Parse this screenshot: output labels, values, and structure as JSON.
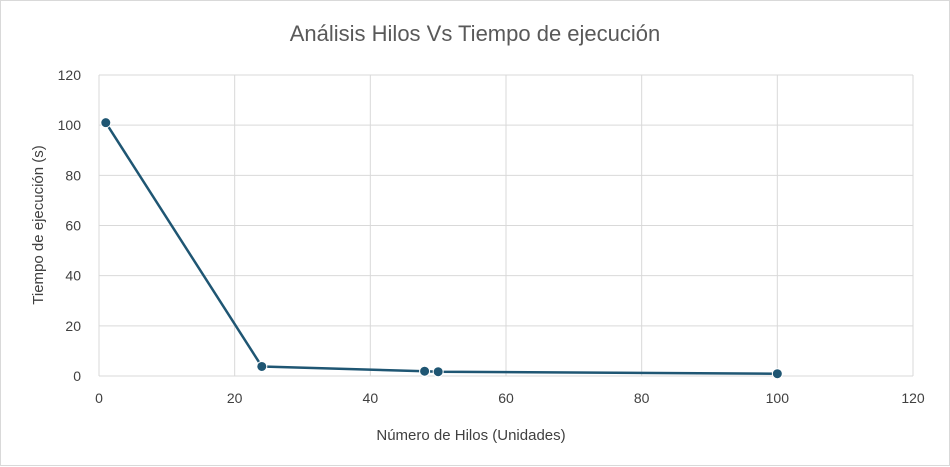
{
  "chart_data": {
    "type": "scatter",
    "title": "Análisis Hilos Vs Tiempo de ejecución",
    "xlabel": "Número de Hilos (Unidades)",
    "ylabel": "Tiempo de ejecución (s)",
    "xlim": [
      0,
      120
    ],
    "ylim": [
      0,
      120
    ],
    "xticks": [
      0,
      20,
      40,
      60,
      80,
      100,
      120
    ],
    "yticks": [
      0,
      20,
      40,
      60,
      80,
      100,
      120
    ],
    "grid": true,
    "legend": "none",
    "series": [
      {
        "color": "#1f5673",
        "lines": true,
        "markers": true,
        "points": [
          {
            "x": 1,
            "y": 101
          },
          {
            "x": 24,
            "y": 3.8
          },
          {
            "x": 48,
            "y": 1.9
          },
          {
            "x": 50,
            "y": 1.7
          },
          {
            "x": 100,
            "y": 0.9
          }
        ]
      }
    ]
  }
}
